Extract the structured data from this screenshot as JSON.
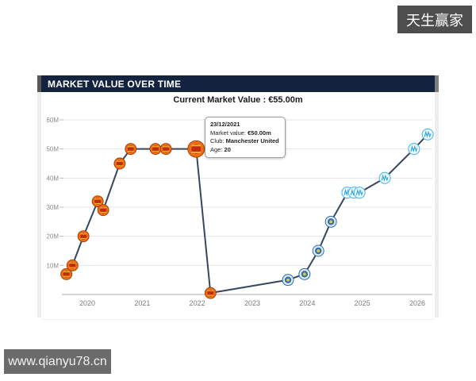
{
  "watermarks": {
    "top_right": "天生赢家",
    "bottom_left": "www.qianyu78.cn"
  },
  "panel": {
    "title": "MARKET VALUE OVER TIME",
    "current_value_text": "Current Market Value : €55.00m"
  },
  "tooltip": {
    "date": "23/12/2021",
    "market_value_label": "Market value:",
    "market_value": "€50.00m",
    "club_label": "Club:",
    "club": "Manchester United",
    "age_label": "Age:",
    "age": "20"
  },
  "chart_data": {
    "type": "line",
    "title": "MARKET VALUE OVER TIME",
    "xlabel": "",
    "ylabel": "",
    "unit": "€m (market value)",
    "x_ticks": [
      2020,
      2021,
      2022,
      2023,
      2024,
      2025,
      2026
    ],
    "y_ticks": [
      "10M",
      "20M",
      "30M",
      "40M",
      "50M",
      "60M"
    ],
    "ylim": [
      0,
      60
    ],
    "grid": true,
    "legend": false,
    "series": [
      {
        "name": "Market value",
        "points": [
          {
            "year": 2019.62,
            "value": 7,
            "club": "man-united"
          },
          {
            "year": 2019.73,
            "value": 10,
            "club": "man-united"
          },
          {
            "year": 2019.93,
            "value": 20,
            "club": "man-united"
          },
          {
            "year": 2020.19,
            "value": 32,
            "club": "man-united"
          },
          {
            "year": 2020.29,
            "value": 29,
            "club": "man-united"
          },
          {
            "year": 2020.59,
            "value": 45,
            "club": "man-united"
          },
          {
            "year": 2020.79,
            "value": 50,
            "club": "man-united"
          },
          {
            "year": 2021.24,
            "value": 50,
            "club": "man-united"
          },
          {
            "year": 2021.43,
            "value": 50,
            "club": "man-united"
          },
          {
            "year": 2021.98,
            "value": 50,
            "club": "man-united",
            "highlight": true
          },
          {
            "year": 2022.24,
            "value": 0.5,
            "club": "man-united"
          },
          {
            "year": 2023.65,
            "value": 5,
            "club": "getafe"
          },
          {
            "year": 2023.95,
            "value": 7,
            "club": "getafe"
          },
          {
            "year": 2024.2,
            "value": 15,
            "club": "getafe"
          },
          {
            "year": 2024.43,
            "value": 25,
            "club": "getafe"
          },
          {
            "year": 2024.73,
            "value": 35,
            "club": "marseille"
          },
          {
            "year": 2024.85,
            "value": 35,
            "club": "marseille"
          },
          {
            "year": 2024.95,
            "value": 35,
            "club": "marseille"
          },
          {
            "year": 2025.41,
            "value": 40,
            "club": "marseille"
          },
          {
            "year": 2025.94,
            "value": 50,
            "club": "marseille"
          },
          {
            "year": 2026.19,
            "value": 55,
            "club": "marseille"
          }
        ]
      }
    ],
    "colors": {
      "line": "#37465f",
      "header_bar": "#13233f",
      "man_united": "#ee6d17",
      "getafe": "#2f6fb0",
      "marseille": "#49b9ea",
      "gridline": "#e6e6e6",
      "axis": "#adadad",
      "tick_label": "#8b8b8b"
    }
  }
}
